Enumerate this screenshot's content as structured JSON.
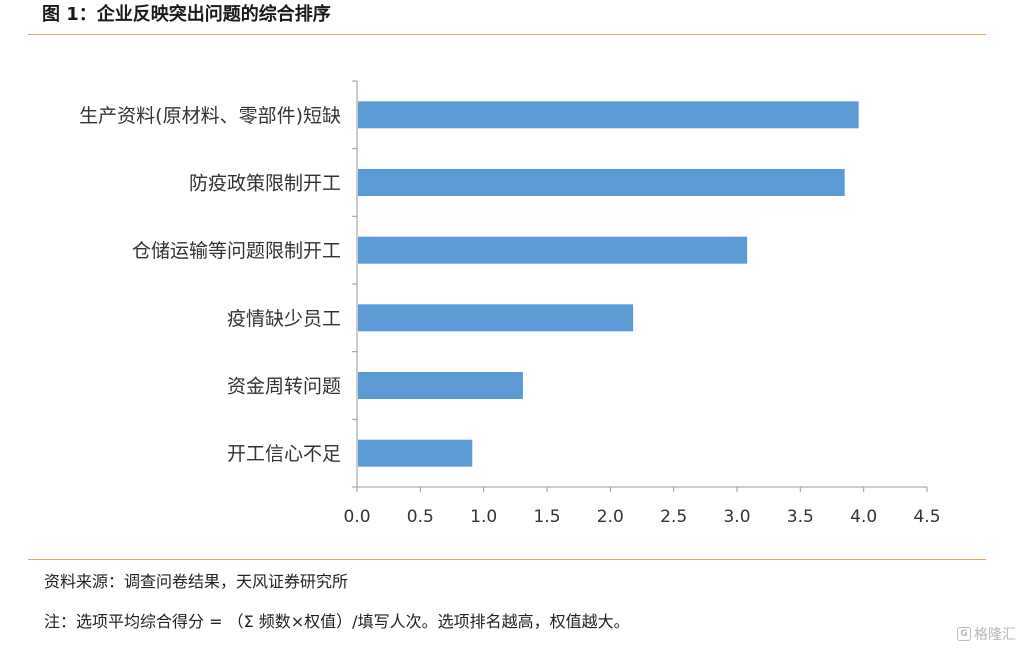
{
  "title": "图 1：企业反映突出问题的综合排序",
  "chart_data": {
    "type": "bar",
    "orientation": "horizontal",
    "categories": [
      "生产资料(原材料、零部件)短缺",
      "防疫政策限制开工",
      "仓储运输等问题限制开工",
      "疫情缺少员工",
      "资金周转问题",
      "开工信心不足"
    ],
    "values": [
      3.96,
      3.85,
      3.08,
      2.18,
      1.31,
      0.91
    ],
    "xlim": [
      0,
      4.5
    ],
    "xticks": [
      "0.0",
      "0.5",
      "1.0",
      "1.5",
      "2.0",
      "2.5",
      "3.0",
      "3.5",
      "4.0",
      "4.5"
    ],
    "bar_color": "#5b9bd5",
    "grid": false,
    "legend": "none"
  },
  "footer": {
    "source": "资料来源：调查问卷结果，天风证券研究所",
    "note": "注：选项平均综合得分 = （Σ 频数×权值）/填写人次。选项排名越高，权值越大。"
  },
  "watermark": {
    "icon": "G",
    "text": "格隆汇"
  }
}
